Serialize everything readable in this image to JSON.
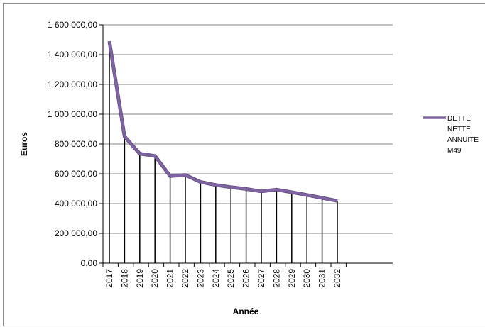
{
  "chart_data": {
    "type": "line",
    "title": "",
    "xlabel": "Année",
    "ylabel": "Euros",
    "x": [
      "2017",
      "2018",
      "2019",
      "2020",
      "2021",
      "2022",
      "2023",
      "2024",
      "2025",
      "2026",
      "2027",
      "2028",
      "2029",
      "2030",
      "2031",
      "2032"
    ],
    "series": [
      {
        "name": "DETTE NETTE ANNUITE M49",
        "values": [
          1490000,
          850000,
          735000,
          720000,
          585000,
          592000,
          545000,
          525000,
          510000,
          498000,
          482000,
          494000,
          476000,
          458000,
          438000,
          418000
        ],
        "color": "#8064a2"
      }
    ],
    "ylim": [
      0,
      1600000
    ],
    "y_ticks": [
      "0,00",
      "200 000,00",
      "400 000,00",
      "600 000,00",
      "800 000,00",
      "1 000 000,00",
      "1 200 000,00",
      "1 400 000,00",
      "1 600 000,00"
    ],
    "legend_lines": [
      "DETTE",
      "NETTE",
      "ANNUITE",
      "M49"
    ],
    "grid": "horizontal",
    "drop_lines": true,
    "legend_position": "right"
  }
}
